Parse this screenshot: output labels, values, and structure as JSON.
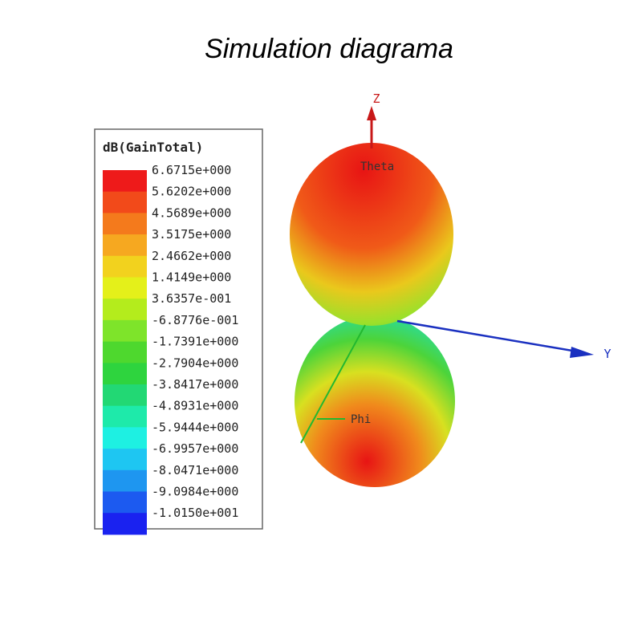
{
  "title": "Simulation diagrama",
  "legend": {
    "title": "dB(GainTotal)",
    "entries": [
      {
        "label": "6.6715e+000",
        "color": "#ee1a1a"
      },
      {
        "label": "5.6202e+000",
        "color": "#f24a1a"
      },
      {
        "label": "4.5689e+000",
        "color": "#f47a1c"
      },
      {
        "label": "3.5175e+000",
        "color": "#f6a820"
      },
      {
        "label": "2.4662e+000",
        "color": "#f2d21e"
      },
      {
        "label": "1.4149e+000",
        "color": "#e4f01a"
      },
      {
        "label": "3.6357e-001",
        "color": "#b4ec1c"
      },
      {
        "label": "-6.8776e-001",
        "color": "#7ee42a"
      },
      {
        "label": "-1.7391e+000",
        "color": "#4ed82e"
      },
      {
        "label": "-2.7904e+000",
        "color": "#2ed43e"
      },
      {
        "label": "-3.8417e+000",
        "color": "#22d874"
      },
      {
        "label": "-4.8931e+000",
        "color": "#1eeaaa"
      },
      {
        "label": "-5.9444e+000",
        "color": "#1ef0e2"
      },
      {
        "label": "-6.9957e+000",
        "color": "#1ec6f2"
      },
      {
        "label": "-8.0471e+000",
        "color": "#1e96f0"
      },
      {
        "label": "-9.0984e+000",
        "color": "#1c5af0"
      },
      {
        "label": "-1.0150e+001",
        "color": "#1a22f0"
      }
    ]
  },
  "axes": {
    "z": "Z",
    "y": "Y",
    "theta": "Theta",
    "phi": "Phi"
  }
}
